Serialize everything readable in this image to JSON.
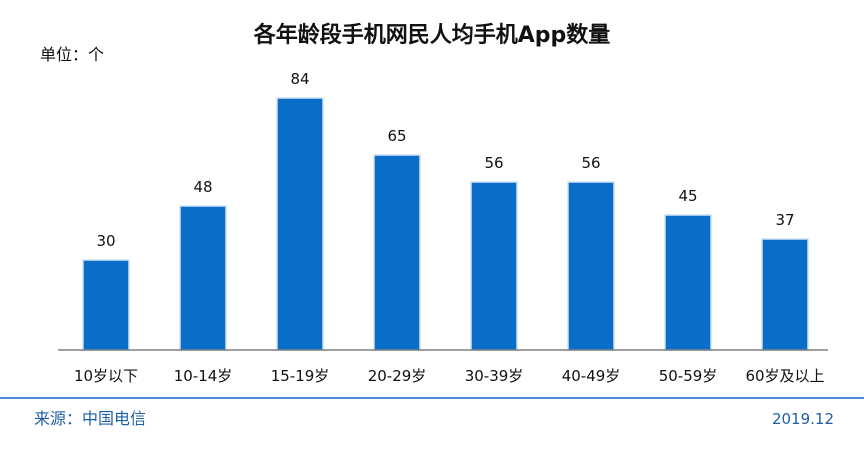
{
  "title": "各年龄段手机网民人均手机App数量",
  "unit_label": "单位：个",
  "source": "来源：中国电信",
  "date": "2019.12",
  "colors": {
    "bar": "#0a6ec8",
    "bar_edge": "#cfe0f2",
    "axis": "#666666",
    "footer_line": "#4a8fd6",
    "footer_text": "#1f5fa8"
  },
  "chart_data": {
    "type": "bar",
    "title": "各年龄段手机网民人均手机App数量",
    "ylabel": "单位：个",
    "xlabel": "",
    "categories": [
      "10岁以下",
      "10-14岁",
      "15-19岁",
      "20-29岁",
      "30-39岁",
      "40-49岁",
      "50-59岁",
      "60岁及以上"
    ],
    "values": [
      30,
      48,
      84,
      65,
      56,
      56,
      45,
      37
    ],
    "ylim": [
      0,
      90
    ],
    "grid": false,
    "legend": "none",
    "data_labels": true
  }
}
